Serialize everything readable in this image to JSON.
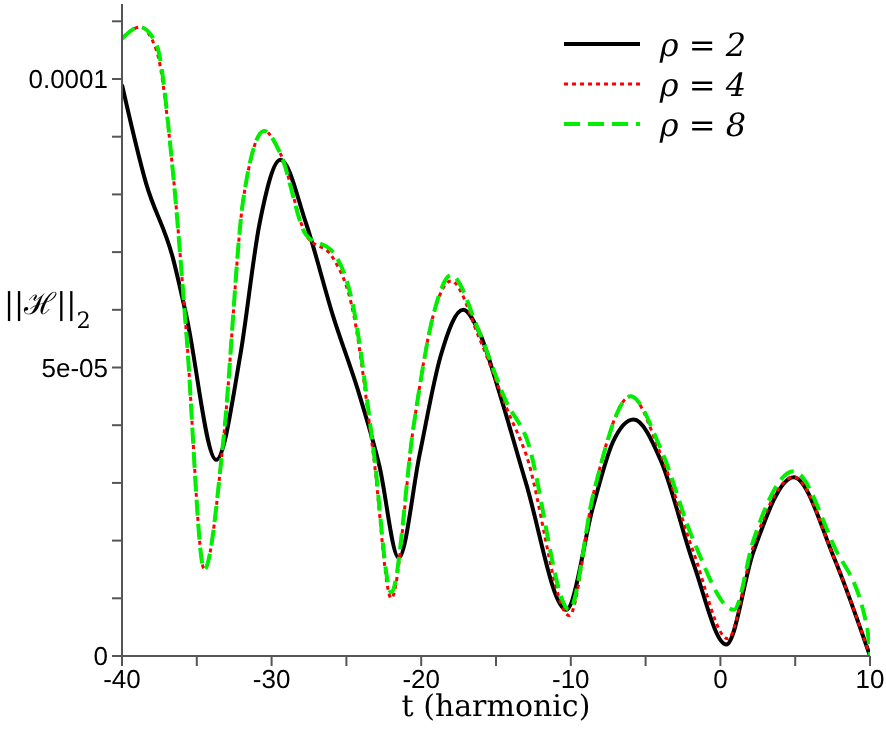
{
  "chart_data": {
    "type": "line",
    "xlabel": "t (harmonic)",
    "ylabel": "||ℋ||$_{2}$",
    "xlim": [
      -40,
      10
    ],
    "xticks": [
      -40,
      {
        "value": -35,
        "label": null
      },
      -30,
      {
        "value": -25,
        "label": null
      },
      -20,
      {
        "value": -15,
        "label": null
      },
      -10,
      {
        "value": -5,
        "label": null
      },
      0,
      {
        "value": 5,
        "label": null
      },
      10
    ],
    "ylim": [
      0,
      0.000113
    ],
    "yticks": [
      0,
      {
        "value": 1e-05,
        "label": null
      },
      {
        "value": 2e-05,
        "label": null
      },
      {
        "value": 3e-05,
        "label": null
      },
      {
        "value": 4e-05,
        "label": null
      },
      {
        "value": 5e-05,
        "label": "5e-05"
      },
      {
        "value": 6e-05,
        "label": null
      },
      {
        "value": 7e-05,
        "label": null
      },
      {
        "value": 8e-05,
        "label": null
      },
      {
        "value": 9e-05,
        "label": null
      },
      0.0001,
      {
        "value": 0.00011,
        "label": null
      }
    ],
    "legend": "top right",
    "grid": false,
    "marker": "none",
    "series": [
      {
        "name": "ρ = 2",
        "color": "#000000",
        "line_style": "solid",
        "x": [
          -40,
          -38.4,
          -36.6,
          -35.7,
          -33.7,
          -32.1,
          -30.8,
          -29.4,
          -27.7,
          -25.9,
          -24.1,
          -22.8,
          -21.5,
          -20.1,
          -18.7,
          -17.2,
          -16.1,
          -14.7,
          -13,
          -10.3,
          -8.5,
          -7.2,
          -5.8,
          -4,
          -1.8,
          0.4,
          2.2,
          4.9,
          7.6,
          10
        ],
        "values": [
          9.9e-05,
          8.2e-05,
          6.9e-05,
          5.9e-05,
          3.4e-05,
          5.2e-05,
          7.5e-05,
          8.6e-05,
          7.5e-05,
          5.9e-05,
          4.5e-05,
          3.3e-05,
          1.7e-05,
          3.5e-05,
          5.2e-05,
          6e-05,
          5.6e-05,
          4.5e-05,
          3e-05,
          8e-06,
          2.6e-05,
          3.7e-05,
          4.1e-05,
          3.4e-05,
          1.6e-05,
          2e-06,
          1.8e-05,
          3.1e-05,
          1.7e-05,
          0
        ]
      },
      {
        "name": "ρ = 4",
        "color": "#ff0000",
        "line_style": "dotted",
        "x": [
          -40,
          -38.8,
          -37.7,
          -36.6,
          -35.7,
          -34.5,
          -33.2,
          -31.9,
          -30.5,
          -29.4,
          -27.7,
          -25.9,
          -24.5,
          -23.2,
          -22,
          -20.5,
          -19.2,
          -18,
          -16.1,
          -14.3,
          -13,
          -10.1,
          -8.5,
          -6,
          -4,
          -1.8,
          0.5,
          2.2,
          4.9,
          7.6,
          10
        ],
        "values": [
          0.000107,
          0.000109,
          0.000105,
          8.4e-05,
          5.6e-05,
          1.5e-05,
          3.8e-05,
          7.9e-05,
          9.1e-05,
          8.7e-05,
          7.3e-05,
          6.9e-05,
          5.9e-05,
          3.5e-05,
          1e-05,
          4e-05,
          5.9e-05,
          6.5e-05,
          5.5e-05,
          4.3e-05,
          3.5e-05,
          7e-06,
          2.8e-05,
          4.5e-05,
          3.5e-05,
          1.8e-05,
          3e-06,
          1.9e-05,
          3.1e-05,
          1.7e-05,
          0
        ]
      },
      {
        "name": "ρ = 8",
        "color": "#00ee00",
        "line_style": "dashed",
        "x": [
          -40,
          -38.8,
          -37.7,
          -36.6,
          -35.7,
          -34.5,
          -33.2,
          -31.9,
          -30.5,
          -29.4,
          -27.7,
          -25.9,
          -24.5,
          -23.2,
          -22,
          -20.5,
          -19.2,
          -18,
          -16.1,
          -14.3,
          -13,
          -10.1,
          -8.5,
          -6,
          -4,
          -1.8,
          0.9,
          2.2,
          4.9,
          7.6,
          9.8,
          10
        ],
        "values": [
          0.000107,
          0.000109,
          0.000106,
          8.4e-05,
          5.6e-05,
          1.5e-05,
          3.8e-05,
          7.9e-05,
          9.1e-05,
          8.7e-05,
          7.3e-05,
          7e-05,
          6e-05,
          3.6e-05,
          1.1e-05,
          4e-05,
          5.9e-05,
          6.6e-05,
          5.6e-05,
          4.4e-05,
          3.8e-05,
          8e-06,
          2.8e-05,
          4.5e-05,
          3.6e-05,
          2e-05,
          8e-06,
          2e-05,
          3.2e-05,
          1.9e-05,
          5e-06,
          0
        ]
      }
    ]
  }
}
